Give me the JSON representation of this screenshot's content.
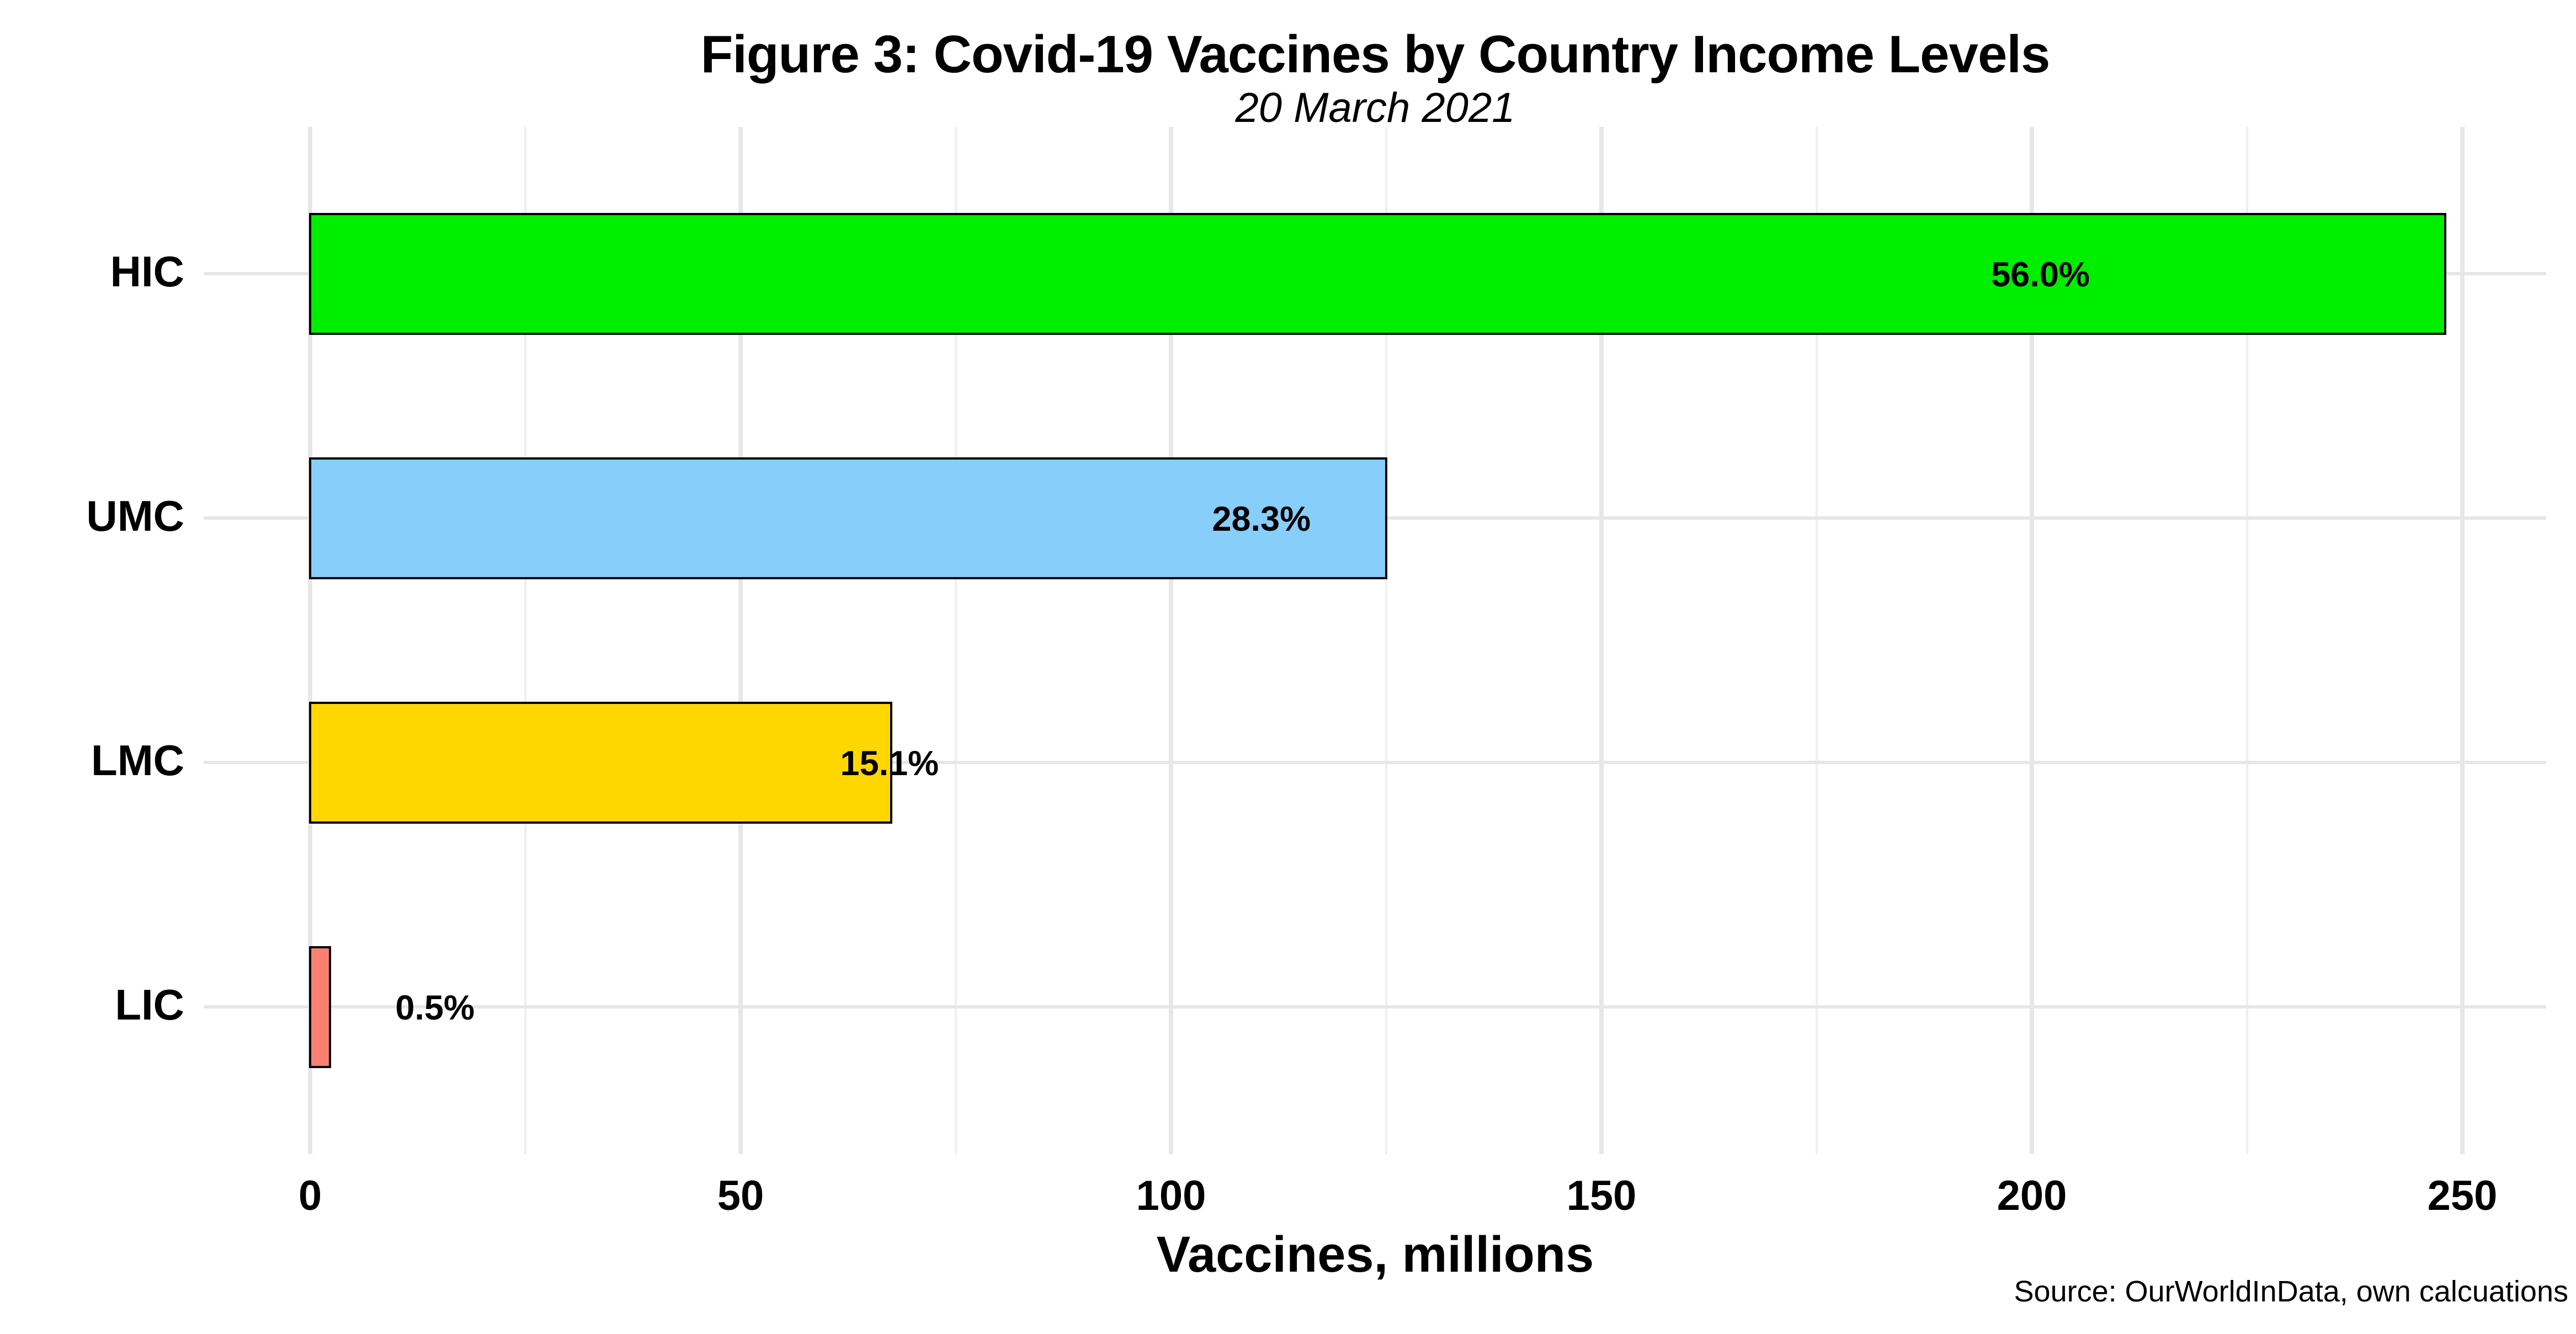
{
  "title": "Figure 3: Covid-19 Vaccines by Country Income Levels",
  "subtitle": "20 March 2021",
  "caption": "Source: OurWorldInData, own calcuations",
  "chart_data": {
    "type": "bar",
    "orientation": "horizontal",
    "title": "Figure 3: Covid-19 Vaccines by Country Income Levels",
    "subtitle": "20 March 2021",
    "xlabel": "Vaccines, millions",
    "ylabel": "",
    "caption": "Source: OurWorldInData, own calcuations",
    "categories": [
      "HIC",
      "UMC",
      "LMC",
      "LIC"
    ],
    "values_millions": [
      248,
      125,
      67.5,
      2.3
    ],
    "data_labels": [
      "56.0%",
      "28.3%",
      "15.1%",
      "0.5%"
    ],
    "data_label_x_millions": [
      201,
      110.5,
      67.3,
      14.5
    ],
    "bar_colors": [
      "#00ee00",
      "#87cefa",
      "#ffd700",
      "#fa8072"
    ],
    "bar_border_color": "#000000",
    "x_ticks": [
      0,
      50,
      100,
      150,
      200,
      250
    ],
    "x_minor_step": 25,
    "xlim": [
      0,
      250
    ],
    "grid": "vertical major+minor, horizontal major at category centers",
    "legend": "none",
    "background": "#ffffff"
  }
}
